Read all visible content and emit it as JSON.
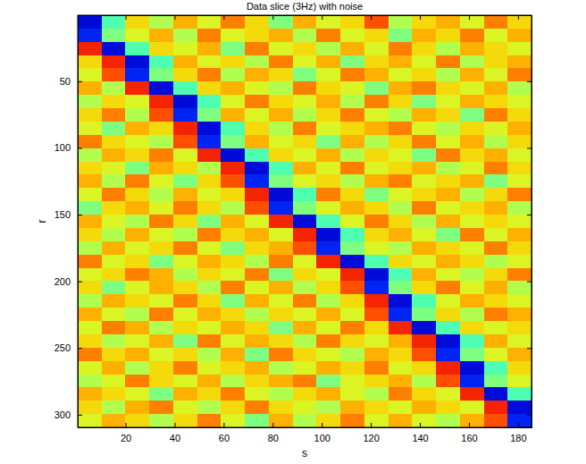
{
  "chart_data": {
    "type": "heatmap",
    "title": "Data slice (3Hz) with noise",
    "x_label": "s",
    "y_label": "r",
    "xlim": [
      0.5,
      185.5
    ],
    "ylim": [
      309.5,
      0.5
    ],
    "xticks": [
      20,
      40,
      60,
      80,
      100,
      120,
      140,
      160,
      180
    ],
    "yticks": [
      50,
      100,
      150,
      200,
      250,
      300
    ],
    "clim": [
      -1,
      1
    ],
    "cells": [
      [
        -0.8,
        -0.1,
        0.3,
        0.1,
        0.4,
        0.2,
        0.5,
        0.3,
        0.0,
        0.4,
        0.2,
        0.3,
        0.6,
        0.1,
        0.3,
        0.4,
        0.2,
        0.5,
        0.3
      ],
      [
        -0.7,
        0.0,
        0.2,
        0.4,
        0.1,
        0.5,
        0.2,
        0.3,
        0.4,
        0.1,
        0.5,
        0.2,
        0.3,
        0.0,
        0.4,
        0.3,
        0.5,
        0.2,
        0.4
      ],
      [
        0.7,
        -0.8,
        -0.1,
        0.3,
        0.2,
        0.4,
        0.0,
        0.5,
        0.2,
        0.3,
        0.1,
        0.4,
        0.2,
        0.5,
        0.3,
        0.1,
        0.4,
        0.3,
        0.2
      ],
      [
        0.3,
        0.7,
        -0.8,
        -0.1,
        0.4,
        0.2,
        0.3,
        0.1,
        0.5,
        0.2,
        0.4,
        0.0,
        0.3,
        0.4,
        0.2,
        0.5,
        0.1,
        0.3,
        0.4
      ],
      [
        0.2,
        0.6,
        -0.7,
        0.0,
        0.3,
        0.5,
        0.1,
        0.4,
        0.3,
        0.0,
        0.2,
        0.5,
        0.4,
        0.2,
        0.3,
        0.1,
        0.4,
        0.2,
        0.5
      ],
      [
        0.4,
        0.1,
        0.7,
        -0.8,
        -0.1,
        0.3,
        0.4,
        0.2,
        0.1,
        0.5,
        0.3,
        0.2,
        0.0,
        0.4,
        0.5,
        0.3,
        0.2,
        0.4,
        0.1
      ],
      [
        0.1,
        0.3,
        0.2,
        0.7,
        -0.8,
        -0.1,
        0.2,
        0.5,
        0.3,
        0.2,
        0.4,
        0.1,
        0.5,
        0.3,
        0.0,
        0.2,
        0.4,
        0.3,
        0.2
      ],
      [
        0.3,
        0.5,
        0.1,
        0.6,
        -0.7,
        0.0,
        0.4,
        0.2,
        0.4,
        0.1,
        0.3,
        0.5,
        0.2,
        0.1,
        0.4,
        0.3,
        0.0,
        0.5,
        0.3
      ],
      [
        0.2,
        0.0,
        0.4,
        0.3,
        0.7,
        -0.8,
        -0.1,
        0.3,
        0.1,
        0.5,
        0.2,
        0.3,
        0.4,
        0.5,
        0.2,
        0.1,
        0.3,
        0.2,
        0.4
      ],
      [
        0.5,
        0.3,
        0.2,
        0.1,
        0.6,
        -0.7,
        0.0,
        0.4,
        0.2,
        0.3,
        0.0,
        0.4,
        0.1,
        0.3,
        0.5,
        0.2,
        0.4,
        0.1,
        0.3
      ],
      [
        0.1,
        0.4,
        0.3,
        0.5,
        0.2,
        0.7,
        -0.8,
        -0.1,
        0.3,
        0.2,
        0.4,
        0.1,
        0.3,
        0.2,
        0.0,
        0.5,
        0.3,
        0.4,
        0.2
      ],
      [
        0.3,
        0.2,
        0.0,
        0.4,
        0.3,
        0.1,
        0.7,
        -0.8,
        -0.1,
        0.4,
        0.2,
        0.5,
        0.2,
        0.3,
        0.4,
        0.1,
        0.2,
        0.5,
        0.3
      ],
      [
        0.4,
        0.1,
        0.5,
        0.2,
        0.0,
        0.3,
        0.6,
        -0.7,
        0.0,
        0.2,
        0.3,
        0.1,
        0.4,
        0.5,
        0.2,
        0.3,
        0.4,
        0.0,
        0.2
      ],
      [
        0.2,
        0.5,
        0.3,
        0.1,
        0.4,
        0.2,
        0.3,
        0.7,
        -0.8,
        -0.1,
        0.5,
        0.3,
        0.0,
        0.2,
        0.3,
        0.4,
        0.1,
        0.3,
        0.5
      ],
      [
        0.0,
        0.3,
        0.4,
        0.2,
        0.5,
        0.3,
        0.1,
        0.6,
        -0.7,
        0.0,
        0.2,
        0.4,
        0.3,
        0.1,
        0.5,
        0.2,
        0.3,
        0.4,
        0.1
      ],
      [
        0.4,
        0.2,
        0.1,
        0.5,
        0.3,
        0.0,
        0.4,
        0.2,
        0.7,
        -0.8,
        -0.1,
        0.2,
        0.5,
        0.3,
        0.1,
        0.4,
        0.2,
        0.3,
        0.2
      ],
      [
        0.3,
        0.1,
        0.4,
        0.2,
        0.1,
        0.5,
        0.3,
        0.4,
        0.2,
        0.7,
        -0.8,
        -0.1,
        0.3,
        0.4,
        0.2,
        0.0,
        0.5,
        0.2,
        0.4
      ],
      [
        0.1,
        0.4,
        0.2,
        0.3,
        0.5,
        0.2,
        0.0,
        0.3,
        0.4,
        0.6,
        -0.7,
        0.0,
        0.2,
        0.1,
        0.4,
        0.3,
        0.2,
        0.5,
        0.3
      ],
      [
        0.5,
        0.2,
        0.3,
        0.0,
        0.2,
        0.4,
        0.3,
        0.1,
        0.5,
        0.2,
        0.7,
        -0.8,
        -0.1,
        0.3,
        0.2,
        0.4,
        0.3,
        0.1,
        0.2
      ],
      [
        0.2,
        0.3,
        0.5,
        0.4,
        0.1,
        0.3,
        0.2,
        0.5,
        0.0,
        0.3,
        0.2,
        0.7,
        -0.8,
        -0.1,
        0.4,
        0.2,
        0.1,
        0.3,
        0.5
      ],
      [
        0.3,
        0.0,
        0.2,
        0.4,
        0.3,
        0.1,
        0.5,
        0.2,
        0.4,
        0.1,
        0.3,
        0.6,
        -0.7,
        0.0,
        0.3,
        0.5,
        0.2,
        0.4,
        0.1
      ],
      [
        0.1,
        0.4,
        0.3,
        0.2,
        0.5,
        0.3,
        0.0,
        0.4,
        0.2,
        0.5,
        0.1,
        0.3,
        0.7,
        -0.8,
        -0.1,
        0.2,
        0.4,
        0.3,
        0.2
      ],
      [
        0.4,
        0.2,
        0.1,
        0.5,
        0.2,
        0.4,
        0.3,
        0.1,
        0.3,
        0.2,
        0.4,
        0.2,
        0.6,
        -0.7,
        0.0,
        0.3,
        0.1,
        0.5,
        0.4
      ],
      [
        0.2,
        0.5,
        0.4,
        0.1,
        0.3,
        0.2,
        0.4,
        0.3,
        0.0,
        0.4,
        0.2,
        0.5,
        0.3,
        0.7,
        -0.8,
        -0.1,
        0.3,
        0.2,
        0.3
      ],
      [
        0.3,
        0.1,
        0.2,
        0.4,
        0.0,
        0.5,
        0.2,
        0.4,
        0.3,
        0.1,
        0.5,
        0.3,
        0.2,
        0.4,
        0.7,
        -0.8,
        -0.1,
        0.4,
        0.2
      ],
      [
        0.5,
        0.3,
        0.4,
        0.2,
        0.3,
        0.1,
        0.4,
        0.0,
        0.5,
        0.3,
        0.2,
        0.1,
        0.4,
        0.3,
        0.6,
        -0.7,
        0.0,
        0.2,
        0.4
      ],
      [
        0.2,
        0.4,
        0.1,
        0.3,
        0.5,
        0.2,
        0.3,
        0.4,
        0.1,
        0.2,
        0.4,
        0.3,
        0.5,
        0.2,
        0.3,
        0.7,
        -0.8,
        -0.1,
        0.3
      ],
      [
        0.1,
        0.2,
        0.5,
        0.3,
        0.2,
        0.4,
        0.1,
        0.3,
        0.4,
        0.5,
        0.0,
        0.2,
        0.3,
        0.4,
        0.1,
        0.6,
        -0.7,
        0.0,
        0.2
      ],
      [
        0.4,
        0.3,
        0.2,
        0.0,
        0.4,
        0.3,
        0.5,
        0.2,
        0.1,
        0.3,
        0.4,
        0.2,
        0.1,
        0.5,
        0.3,
        0.2,
        0.7,
        -0.8,
        -0.1
      ],
      [
        0.3,
        0.1,
        0.4,
        0.5,
        0.2,
        0.1,
        0.3,
        0.5,
        0.3,
        0.2,
        0.1,
        0.4,
        0.3,
        0.2,
        0.4,
        0.3,
        0.2,
        0.7,
        -0.8
      ],
      [
        0.2,
        0.4,
        0.3,
        0.1,
        0.3,
        0.5,
        0.2,
        0.0,
        0.4,
        0.1,
        0.3,
        0.5,
        0.2,
        0.4,
        0.2,
        0.1,
        0.4,
        0.6,
        -0.7
      ]
    ]
  }
}
